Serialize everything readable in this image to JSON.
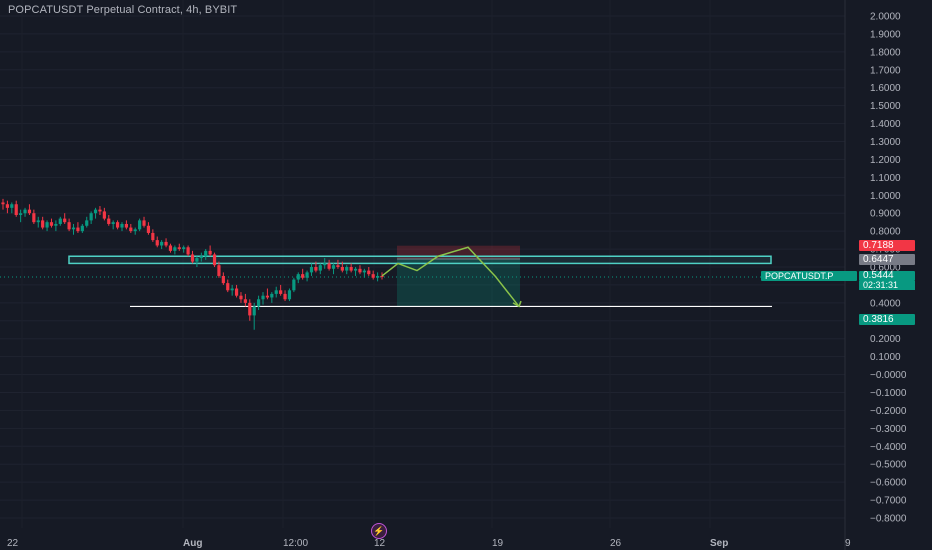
{
  "header": {
    "title": "POPCATUSDT Perpetual Contract, 4h, BYBIT"
  },
  "price_axis": {
    "ticks": [
      "2.0000",
      "1.9000",
      "1.8000",
      "1.7000",
      "1.6000",
      "1.5000",
      "1.4000",
      "1.3000",
      "1.2000",
      "1.1000",
      "1.0000",
      "0.9000",
      "0.8000",
      "0.7000",
      "0.6000",
      "0.5000",
      "0.4000",
      "0.3000",
      "0.2000",
      "0.1000",
      "−0.0000",
      "−0.1000",
      "−0.2000",
      "−0.3000",
      "−0.4000",
      "−0.5000",
      "−0.6000",
      "−0.7000",
      "−0.8000"
    ],
    "tick_values": [
      2.0,
      1.9,
      1.8,
      1.7,
      1.6,
      1.5,
      1.4,
      1.3,
      1.2,
      1.1,
      1.0,
      0.9,
      0.8,
      0.7,
      0.6,
      0.5,
      0.4,
      0.3,
      0.2,
      0.1,
      0.0,
      -0.1,
      -0.2,
      -0.3,
      -0.4,
      -0.5,
      -0.6,
      -0.7,
      -0.8
    ]
  },
  "time_axis": {
    "labels": [
      "22",
      "Aug",
      "12:00",
      "12",
      "19",
      "26",
      "Sep",
      "9"
    ],
    "bold": [
      false,
      true,
      false,
      false,
      false,
      false,
      true,
      false
    ]
  },
  "tags": {
    "stop": {
      "value": "0.7188",
      "color": "#f23645"
    },
    "entry": {
      "value": "0.6447",
      "color": "#787b86"
    },
    "symbol": {
      "label": "POPCATUSDT.P",
      "color": "#089981"
    },
    "last_price": {
      "value": "0.5444",
      "color": "#089981"
    },
    "countdown": {
      "value": "02:31:31"
    },
    "target": {
      "value": "0.3816",
      "color": "#089981"
    }
  },
  "drawings": {
    "resistance_box": {
      "top": 0.66,
      "bottom": 0.62,
      "color": "#4fd1c5"
    },
    "support_line": {
      "price": 0.38,
      "color": "#ffffff"
    },
    "short_position": {
      "entry": 0.6447,
      "stop": 0.7188,
      "target": 0.3816
    },
    "projection_path": [
      0.55,
      0.62,
      0.58,
      0.66,
      0.71,
      0.55,
      0.38
    ],
    "projection_color": "#8bc34a"
  },
  "colors": {
    "up": "#089981",
    "down": "#f23645",
    "background": "#161a25"
  },
  "chart_data": {
    "type": "candlestick",
    "symbol": "POPCATUSDT.P",
    "interval": "4h",
    "ohlc": [
      [
        0.96,
        0.98,
        0.92,
        0.95
      ],
      [
        0.95,
        0.97,
        0.9,
        0.93
      ],
      [
        0.93,
        0.96,
        0.9,
        0.95
      ],
      [
        0.95,
        0.97,
        0.88,
        0.89
      ],
      [
        0.89,
        0.92,
        0.85,
        0.9
      ],
      [
        0.9,
        0.93,
        0.88,
        0.92
      ],
      [
        0.92,
        0.95,
        0.89,
        0.9
      ],
      [
        0.9,
        0.92,
        0.84,
        0.85
      ],
      [
        0.85,
        0.88,
        0.82,
        0.86
      ],
      [
        0.86,
        0.88,
        0.81,
        0.82
      ],
      [
        0.82,
        0.86,
        0.8,
        0.85
      ],
      [
        0.85,
        0.87,
        0.82,
        0.83
      ],
      [
        0.83,
        0.86,
        0.8,
        0.84
      ],
      [
        0.84,
        0.88,
        0.83,
        0.87
      ],
      [
        0.87,
        0.9,
        0.84,
        0.85
      ],
      [
        0.85,
        0.87,
        0.8,
        0.81
      ],
      [
        0.81,
        0.84,
        0.78,
        0.82
      ],
      [
        0.82,
        0.85,
        0.79,
        0.8
      ],
      [
        0.8,
        0.84,
        0.79,
        0.83
      ],
      [
        0.83,
        0.88,
        0.82,
        0.86
      ],
      [
        0.86,
        0.91,
        0.84,
        0.9
      ],
      [
        0.9,
        0.93,
        0.87,
        0.92
      ],
      [
        0.92,
        0.94,
        0.89,
        0.91
      ],
      [
        0.91,
        0.93,
        0.86,
        0.87
      ],
      [
        0.87,
        0.89,
        0.83,
        0.84
      ],
      [
        0.84,
        0.86,
        0.81,
        0.85
      ],
      [
        0.85,
        0.86,
        0.81,
        0.82
      ],
      [
        0.82,
        0.85,
        0.8,
        0.84
      ],
      [
        0.84,
        0.86,
        0.81,
        0.82
      ],
      [
        0.82,
        0.84,
        0.79,
        0.8
      ],
      [
        0.8,
        0.82,
        0.78,
        0.81
      ],
      [
        0.81,
        0.87,
        0.8,
        0.86
      ],
      [
        0.86,
        0.88,
        0.82,
        0.83
      ],
      [
        0.83,
        0.85,
        0.78,
        0.79
      ],
      [
        0.79,
        0.81,
        0.74,
        0.75
      ],
      [
        0.75,
        0.77,
        0.71,
        0.72
      ],
      [
        0.72,
        0.75,
        0.7,
        0.74
      ],
      [
        0.74,
        0.76,
        0.71,
        0.72
      ],
      [
        0.72,
        0.73,
        0.68,
        0.69
      ],
      [
        0.69,
        0.72,
        0.67,
        0.71
      ],
      [
        0.71,
        0.73,
        0.69,
        0.7
      ],
      [
        0.7,
        0.72,
        0.68,
        0.71
      ],
      [
        0.71,
        0.72,
        0.66,
        0.67
      ],
      [
        0.67,
        0.69,
        0.62,
        0.63
      ],
      [
        0.63,
        0.66,
        0.6,
        0.65
      ],
      [
        0.65,
        0.68,
        0.63,
        0.66
      ],
      [
        0.66,
        0.7,
        0.64,
        0.69
      ],
      [
        0.69,
        0.72,
        0.66,
        0.67
      ],
      [
        0.67,
        0.68,
        0.6,
        0.61
      ],
      [
        0.61,
        0.63,
        0.54,
        0.55
      ],
      [
        0.55,
        0.57,
        0.5,
        0.51
      ],
      [
        0.51,
        0.53,
        0.46,
        0.47
      ],
      [
        0.47,
        0.5,
        0.44,
        0.48
      ],
      [
        0.48,
        0.5,
        0.43,
        0.44
      ],
      [
        0.44,
        0.46,
        0.4,
        0.42
      ],
      [
        0.42,
        0.45,
        0.38,
        0.4
      ],
      [
        0.4,
        0.42,
        0.3,
        0.33
      ],
      [
        0.33,
        0.4,
        0.25,
        0.38
      ],
      [
        0.38,
        0.44,
        0.36,
        0.42
      ],
      [
        0.42,
        0.46,
        0.39,
        0.44
      ],
      [
        0.44,
        0.48,
        0.42,
        0.43
      ],
      [
        0.43,
        0.46,
        0.4,
        0.45
      ],
      [
        0.45,
        0.49,
        0.43,
        0.47
      ],
      [
        0.47,
        0.5,
        0.44,
        0.45
      ],
      [
        0.45,
        0.47,
        0.41,
        0.42
      ],
      [
        0.42,
        0.48,
        0.41,
        0.47
      ],
      [
        0.47,
        0.54,
        0.46,
        0.53
      ],
      [
        0.53,
        0.57,
        0.51,
        0.56
      ],
      [
        0.56,
        0.59,
        0.53,
        0.54
      ],
      [
        0.54,
        0.58,
        0.52,
        0.57
      ],
      [
        0.57,
        0.62,
        0.55,
        0.6
      ],
      [
        0.6,
        0.63,
        0.57,
        0.58
      ],
      [
        0.58,
        0.62,
        0.56,
        0.61
      ],
      [
        0.61,
        0.65,
        0.59,
        0.62
      ],
      [
        0.62,
        0.64,
        0.58,
        0.59
      ],
      [
        0.59,
        0.62,
        0.56,
        0.61
      ],
      [
        0.61,
        0.64,
        0.59,
        0.6
      ],
      [
        0.6,
        0.63,
        0.57,
        0.58
      ],
      [
        0.58,
        0.61,
        0.56,
        0.6
      ],
      [
        0.6,
        0.62,
        0.57,
        0.58
      ],
      [
        0.58,
        0.6,
        0.55,
        0.59
      ],
      [
        0.59,
        0.61,
        0.56,
        0.57
      ],
      [
        0.57,
        0.59,
        0.54,
        0.58
      ],
      [
        0.58,
        0.6,
        0.55,
        0.56
      ],
      [
        0.56,
        0.58,
        0.53,
        0.54
      ],
      [
        0.54,
        0.57,
        0.52,
        0.55
      ],
      [
        0.55,
        0.57,
        0.53,
        0.544
      ]
    ],
    "last_price": 0.5444,
    "ylim": [
      -0.85,
      2.05
    ],
    "grid": true
  }
}
